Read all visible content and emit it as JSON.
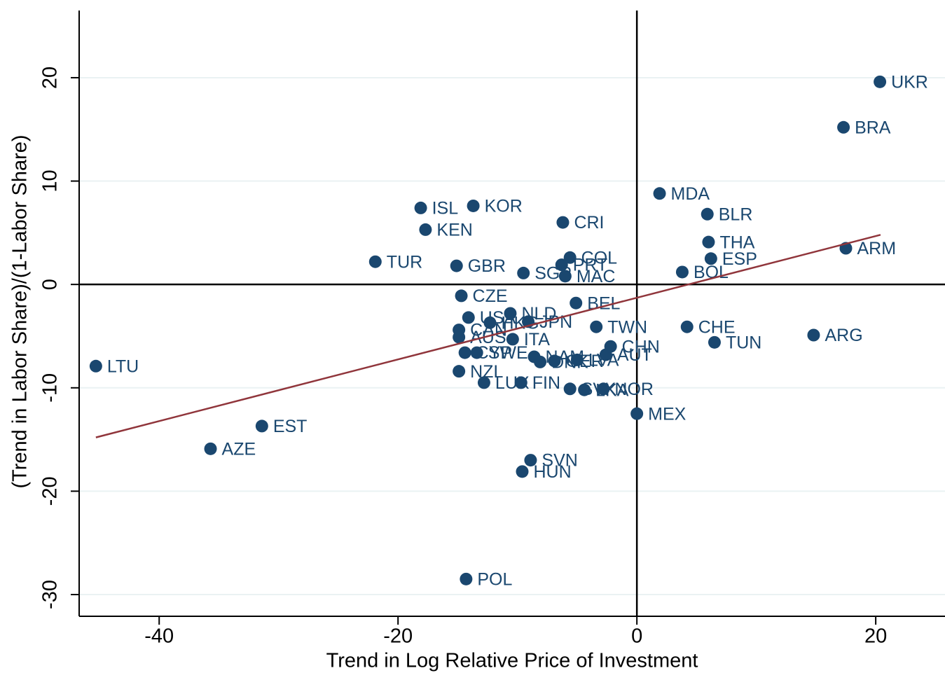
{
  "chart_data": {
    "type": "scatter",
    "x_label": "Trend in Log Relative Price of Investment",
    "y_label": "(Trend in Labor Share)/(1-Labor Share)",
    "xlim": [
      -46.7,
      25.8
    ],
    "xticks": [
      -40,
      -20,
      0,
      20
    ],
    "ylim": [
      -32.1,
      26.5
    ],
    "yticks": [
      -30,
      -20,
      -10,
      0,
      10,
      20
    ],
    "grid": true,
    "reference_lines": {
      "x": 0,
      "y": 0,
      "color": "#000000"
    },
    "series": [
      {
        "color": "#1a476f",
        "point_labels": [
          "UKR",
          "BRA",
          "MDA",
          "BLR",
          "CRI",
          "ISL",
          "KOR",
          "KEN",
          "THA",
          "ESP",
          "ARM",
          "TUR",
          "GBR",
          "COL",
          "PRT",
          "SGP",
          "MAC",
          "BOL",
          "CZE",
          "BEL",
          "USA",
          "NLD",
          "HKG",
          "JPN",
          "TWN",
          "CHE",
          "TUN",
          "ARG",
          "CAN",
          "AUS",
          "ITA",
          "CYP",
          "SWE",
          "NAM",
          "DNK",
          "GER",
          "LVA",
          "AUT",
          "CHN",
          "NZL",
          "LUX",
          "FIN",
          "SVK",
          "LKA",
          "NOR",
          "MEX",
          "EST",
          "AZE",
          "LTU",
          "SVN",
          "HUN",
          "POL"
        ],
        "x": [
          20.35,
          17.3,
          1.9,
          5.9,
          -6.2,
          -18.1,
          -13.7,
          -17.7,
          6.0,
          6.2,
          17.5,
          -21.9,
          -15.1,
          -5.6,
          -6.3,
          -9.5,
          -6.0,
          3.8,
          -14.7,
          -5.1,
          -14.1,
          -10.6,
          -12.3,
          -9.1,
          -3.4,
          4.2,
          6.5,
          14.8,
          -14.9,
          -14.9,
          -10.4,
          -14.4,
          -13.4,
          -8.6,
          -8.1,
          -6.9,
          -5.0,
          -2.6,
          -2.2,
          -14.9,
          -12.8,
          -9.7,
          -5.6,
          -4.4,
          -2.8,
          0.0,
          -31.4,
          -35.7,
          -45.3,
          -8.9,
          -9.6,
          -14.3
        ],
        "values": [
          19.6,
          15.2,
          8.8,
          6.8,
          6.0,
          7.4,
          7.6,
          5.3,
          4.1,
          2.5,
          3.5,
          2.2,
          1.8,
          2.6,
          1.9,
          1.1,
          0.8,
          1.2,
          -1.1,
          -1.8,
          -3.2,
          -2.8,
          -3.7,
          -3.6,
          -4.1,
          -4.1,
          -5.6,
          -4.9,
          -4.4,
          -5.1,
          -5.3,
          -6.6,
          -6.6,
          -7.0,
          -7.5,
          -7.4,
          -7.3,
          -6.8,
          -6.0,
          -8.4,
          -9.5,
          -9.5,
          -10.1,
          -10.2,
          -10.1,
          -12.5,
          -13.7,
          -15.9,
          -7.9,
          -17.0,
          -18.1,
          -28.5
        ]
      }
    ],
    "fit_line": {
      "color": "#90353b",
      "x": [
        -45.3,
        20.4
      ],
      "values": [
        -14.8,
        4.8
      ]
    }
  }
}
